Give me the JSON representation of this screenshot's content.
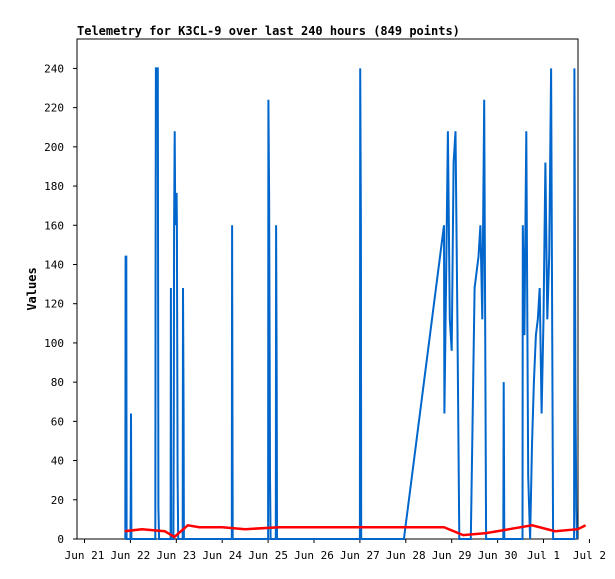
{
  "chart_data": {
    "type": "line",
    "title": "Telemetry for K3CL-9 over last 240 hours (849 points)",
    "xlabel": "",
    "ylabel": "Values",
    "ylim": [
      0,
      255
    ],
    "yticks": [
      0,
      20,
      40,
      60,
      80,
      100,
      120,
      140,
      160,
      180,
      200,
      220,
      240
    ],
    "xlim": [
      "Jun 21 00:00",
      "Jul 2 00:00"
    ],
    "xticks": [
      "Jun 21",
      "Jun 22",
      "Jun 23",
      "Jun 24",
      "Jun 25",
      "Jun 26",
      "Jun 27",
      "Jun 28",
      "Jun 29",
      "Jun 30",
      "Jul 1",
      "Jul 2"
    ],
    "grid": false,
    "series": [
      {
        "color": "#0066cc",
        "points": [
          [
            "Jun 21 21:20",
            0
          ],
          [
            "Jun 21 21:30",
            144
          ],
          [
            "Jun 21 21:50",
            144
          ],
          [
            "Jun 21 22:00",
            0
          ],
          [
            "Jun 22 00:00",
            0
          ],
          [
            "Jun 22 00:10",
            16
          ],
          [
            "Jun 22 00:20",
            64
          ],
          [
            "Jun 22 00:30",
            0
          ],
          [
            "Jun 22 13:00",
            0
          ],
          [
            "Jun 22 13:10",
            144
          ],
          [
            "Jun 22 13:20",
            240
          ],
          [
            "Jun 22 14:20",
            240
          ],
          [
            "Jun 22 14:40",
            16
          ],
          [
            "Jun 22 15:00",
            0
          ],
          [
            "Jun 22 21:00",
            0
          ],
          [
            "Jun 22 21:10",
            128
          ],
          [
            "Jun 22 21:20",
            0
          ],
          [
            "Jun 22 22:30",
            0
          ],
          [
            "Jun 22 22:40",
            64
          ],
          [
            "Jun 22 22:50",
            160
          ],
          [
            "Jun 22 23:10",
            208
          ],
          [
            "Jun 22 23:30",
            160
          ],
          [
            "Jun 22 23:40",
            176
          ],
          [
            "Jun 23 00:10",
            176
          ],
          [
            "Jun 23 00:20",
            160
          ],
          [
            "Jun 23 00:40",
            32
          ],
          [
            "Jun 23 01:00",
            0
          ],
          [
            "Jun 23 03:20",
            0
          ],
          [
            "Jun 23 03:30",
            128
          ],
          [
            "Jun 23 03:50",
            64
          ],
          [
            "Jun 23 04:00",
            0
          ],
          [
            "Jun 24 05:00",
            0
          ],
          [
            "Jun 24 05:10",
            160
          ],
          [
            "Jun 24 05:20",
            80
          ],
          [
            "Jun 24 05:30",
            0
          ],
          [
            "Jun 25 00:00",
            0
          ],
          [
            "Jun 25 00:10",
            224
          ],
          [
            "Jun 25 00:30",
            176
          ],
          [
            "Jun 25 00:50",
            88
          ],
          [
            "Jun 25 01:00",
            32
          ],
          [
            "Jun 25 01:20",
            0
          ],
          [
            "Jun 25 04:00",
            0
          ],
          [
            "Jun 25 04:10",
            160
          ],
          [
            "Jun 25 04:30",
            80
          ],
          [
            "Jun 25 04:40",
            0
          ],
          [
            "Jun 27 00:00",
            0
          ],
          [
            "Jun 27 00:10",
            240
          ],
          [
            "Jun 27 00:30",
            160
          ],
          [
            "Jun 27 00:40",
            0
          ],
          [
            "Jun 27 23:00",
            0
          ],
          [
            "Jun 28 20:00",
            160
          ],
          [
            "Jun 28 20:10",
            64
          ],
          [
            "Jun 28 21:00",
            128
          ],
          [
            "Jun 28 22:00",
            208
          ],
          [
            "Jun 28 23:00",
            112
          ],
          [
            "Jun 29 00:00",
            96
          ],
          [
            "Jun 29 01:00",
            192
          ],
          [
            "Jun 29 02:00",
            208
          ],
          [
            "Jun 29 03:00",
            112
          ],
          [
            "Jun 29 04:00",
            0
          ],
          [
            "Jun 29 10:00",
            0
          ],
          [
            "Jun 29 11:00",
            64
          ],
          [
            "Jun 29 12:00",
            128
          ],
          [
            "Jun 29 14:00",
            144
          ],
          [
            "Jun 29 15:00",
            160
          ],
          [
            "Jun 29 16:00",
            112
          ],
          [
            "Jun 29 17:00",
            224
          ],
          [
            "Jun 29 18:00",
            0
          ],
          [
            "Jun 30 03:00",
            0
          ],
          [
            "Jun 30 03:10",
            80
          ],
          [
            "Jun 30 03:30",
            0
          ],
          [
            "Jun 30 13:00",
            0
          ],
          [
            "Jun 30 13:10",
            160
          ],
          [
            "Jun 30 14:00",
            104
          ],
          [
            "Jun 30 15:00",
            208
          ],
          [
            "Jun 30 16:00",
            32
          ],
          [
            "Jun 30 17:00",
            0
          ],
          [
            "Jun 30 18:00",
            48
          ],
          [
            "Jun 30 19:00",
            80
          ],
          [
            "Jun 30 20:00",
            104
          ],
          [
            "Jun 30 21:00",
            112
          ],
          [
            "Jun 30 22:00",
            128
          ],
          [
            "Jun 30 23:00",
            64
          ],
          [
            "Jul 1 00:00",
            112
          ],
          [
            "Jul 1 01:00",
            192
          ],
          [
            "Jul 1 02:00",
            112
          ],
          [
            "Jul 1 03:00",
            144
          ],
          [
            "Jul 1 04:00",
            240
          ],
          [
            "Jul 1 05:00",
            0
          ],
          [
            "Jul 1 16:00",
            0
          ],
          [
            "Jul 1 16:10",
            240
          ],
          [
            "Jul 1 16:40",
            80
          ],
          [
            "Jul 1 17:10",
            16
          ],
          [
            "Jul 1 17:30",
            0
          ]
        ]
      },
      {
        "color": "#ff0000",
        "points": [
          [
            "Jun 21 21:00",
            4
          ],
          [
            "Jun 22 06:00",
            5
          ],
          [
            "Jun 22 18:00",
            4
          ],
          [
            "Jun 22 23:00",
            1
          ],
          [
            "Jun 23 06:00",
            7
          ],
          [
            "Jun 23 12:00",
            6
          ],
          [
            "Jun 24 00:00",
            6
          ],
          [
            "Jun 24 12:00",
            5
          ],
          [
            "Jun 25 06:00",
            6
          ],
          [
            "Jun 27 00:00",
            6
          ],
          [
            "Jun 28 20:00",
            6
          ],
          [
            "Jun 29 06:00",
            2
          ],
          [
            "Jun 29 18:00",
            3
          ],
          [
            "Jun 30 06:00",
            5
          ],
          [
            "Jun 30 18:00",
            7
          ],
          [
            "Jul 1 06:00",
            4
          ],
          [
            "Jul 1 18:00",
            5
          ],
          [
            "Jul 1 22:00",
            7
          ]
        ]
      }
    ]
  }
}
